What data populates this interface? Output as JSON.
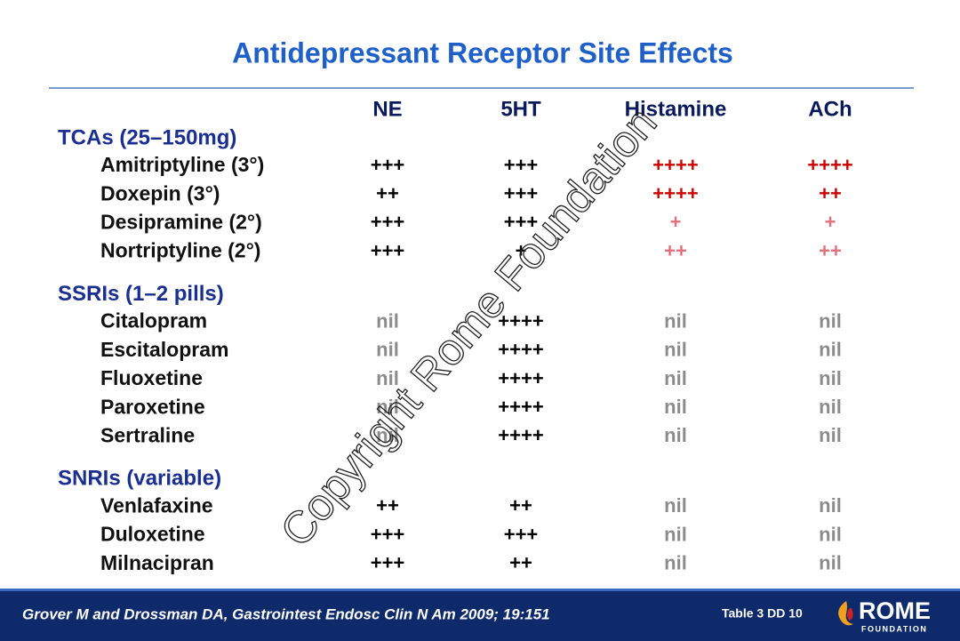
{
  "header": {
    "title": "Antidepressant Receptor Site Effects"
  },
  "table": {
    "columns": [
      "NE",
      "5HT",
      "Histamine",
      "ACh"
    ],
    "groups": [
      {
        "label": "TCAs (25–150mg)",
        "rows": [
          {
            "name": "Amitriptyline (3°)",
            "cells": [
              "+++",
              "+++",
              "++++",
              "++++"
            ],
            "colors": [
              "#000000",
              "#000000",
              "#cc0000",
              "#cc0000"
            ]
          },
          {
            "name": "Doxepin (3°)",
            "cells": [
              "++",
              "+++",
              "++++",
              "++"
            ],
            "colors": [
              "#000000",
              "#000000",
              "#cc0000",
              "#cc0000"
            ]
          },
          {
            "name": "Desipramine (2°)",
            "cells": [
              "+++",
              "+++",
              "+",
              "+"
            ],
            "colors": [
              "#000000",
              "#000000",
              "#e0707c",
              "#e0707c"
            ]
          },
          {
            "name": "Nortriptyline (2°)",
            "cells": [
              "+++",
              "+",
              "++",
              "++"
            ],
            "colors": [
              "#000000",
              "#000000",
              "#e0707c",
              "#e0707c"
            ]
          }
        ]
      },
      {
        "label": "SSRIs (1–2 pills)",
        "rows": [
          {
            "name": "Citalopram",
            "cells": [
              "nil",
              "++++",
              "nil",
              "nil"
            ],
            "colors": [
              "#8c8c8c",
              "#000000",
              "#8c8c8c",
              "#8c8c8c"
            ]
          },
          {
            "name": "Escitalopram",
            "cells": [
              "nil",
              "++++",
              "nil",
              "nil"
            ],
            "colors": [
              "#8c8c8c",
              "#000000",
              "#8c8c8c",
              "#8c8c8c"
            ]
          },
          {
            "name": "Fluoxetine",
            "cells": [
              "nil",
              "++++",
              "nil",
              "nil"
            ],
            "colors": [
              "#8c8c8c",
              "#000000",
              "#8c8c8c",
              "#8c8c8c"
            ]
          },
          {
            "name": "Paroxetine",
            "cells": [
              "nil",
              "++++",
              "nil",
              "nil"
            ],
            "colors": [
              "#8c8c8c",
              "#000000",
              "#8c8c8c",
              "#8c8c8c"
            ]
          },
          {
            "name": "Sertraline",
            "cells": [
              "nil",
              "++++",
              "nil",
              "nil"
            ],
            "colors": [
              "#8c8c8c",
              "#000000",
              "#8c8c8c",
              "#8c8c8c"
            ]
          }
        ]
      },
      {
        "label": "SNRIs (variable)",
        "rows": [
          {
            "name": "Venlafaxine",
            "cells": [
              "++",
              "++",
              "nil",
              "nil"
            ],
            "colors": [
              "#000000",
              "#000000",
              "#8c8c8c",
              "#8c8c8c"
            ]
          },
          {
            "name": "Duloxetine",
            "cells": [
              "+++",
              "+++",
              "nil",
              "nil"
            ],
            "colors": [
              "#000000",
              "#000000",
              "#8c8c8c",
              "#8c8c8c"
            ]
          },
          {
            "name": "Milnacipran",
            "cells": [
              "+++",
              "++",
              "nil",
              "nil"
            ],
            "colors": [
              "#000000",
              "#000000",
              "#8c8c8c",
              "#8c8c8c"
            ]
          }
        ]
      }
    ]
  },
  "footer": {
    "citation": "Grover M and Drossman DA, Gastrointest Endosc Clin N Am 2009; 19:151",
    "reference": "Table 3  DD 10",
    "logo": "ROME",
    "logo_sub": "FOUNDATION"
  },
  "watermark": "Copyright Rome Foundation"
}
